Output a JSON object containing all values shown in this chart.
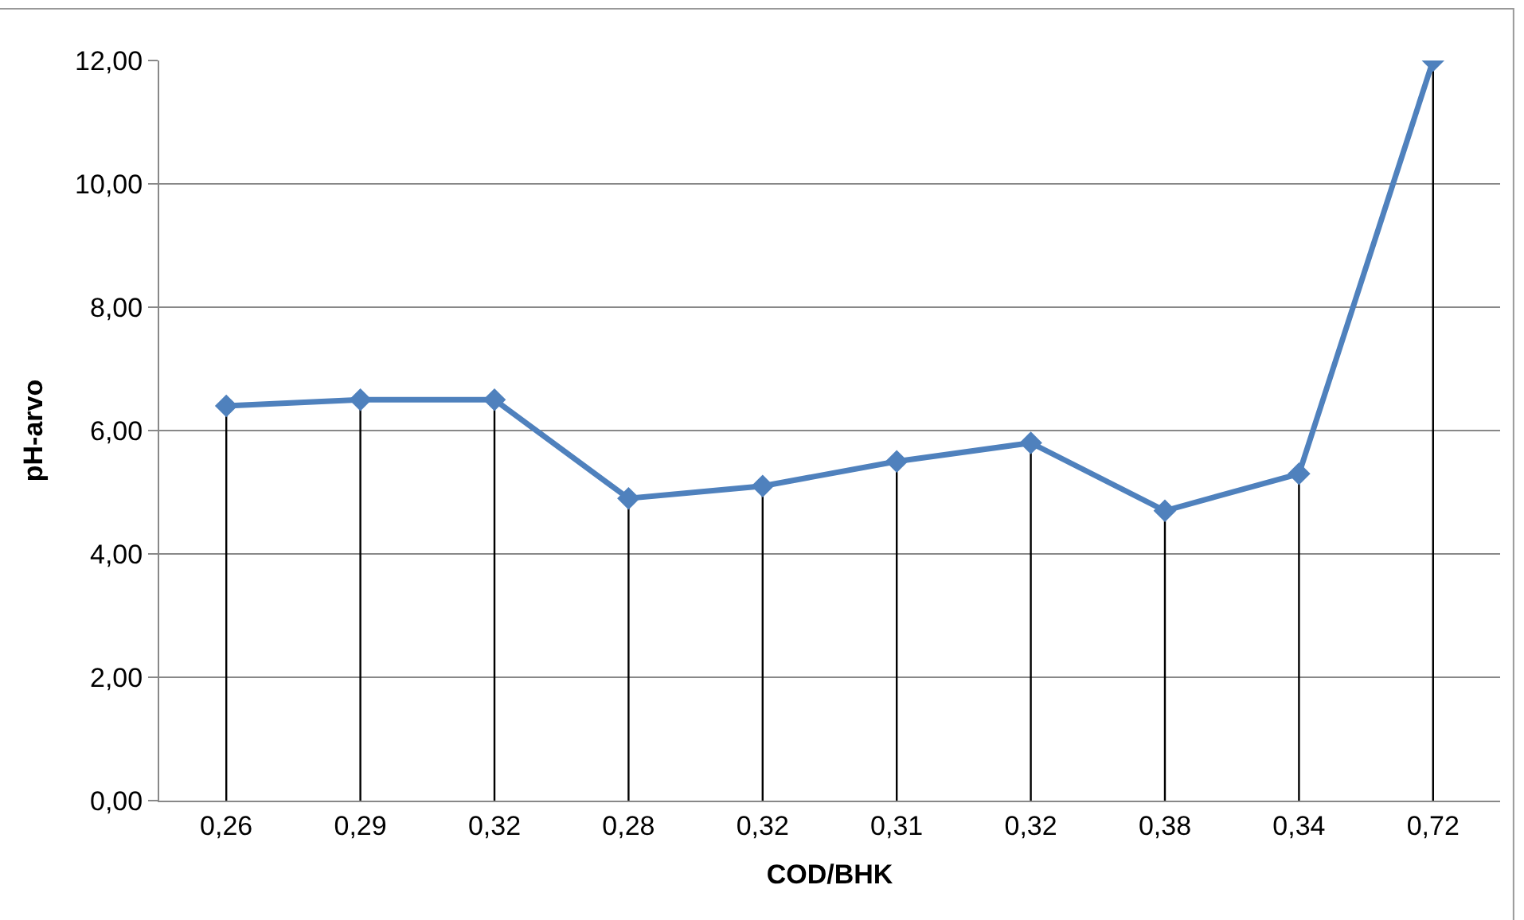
{
  "chart_data": {
    "type": "line",
    "xlabel": "COD/BHK",
    "ylabel": "pH-arvo",
    "categories": [
      "0,26",
      "0,29",
      "0,32",
      "0,28",
      "0,32",
      "0,31",
      "0,32",
      "0,38",
      "0,34",
      "0,72"
    ],
    "series": [
      {
        "color": "#4f81bd",
        "values": [
          6.4,
          6.5,
          6.5,
          4.9,
          5.1,
          5.5,
          5.8,
          4.7,
          5.3,
          12.0
        ],
        "errors": [
          [
            0,
            6.4
          ],
          [
            0,
            6.5
          ],
          [
            0,
            6.5
          ],
          [
            0,
            4.9
          ],
          [
            0,
            5.1
          ],
          [
            0,
            5.5
          ],
          [
            0,
            5.8
          ],
          [
            0,
            4.7
          ],
          [
            0,
            5.3
          ],
          [
            0,
            12.0
          ]
        ]
      }
    ],
    "ylim": [
      0,
      12
    ],
    "yticks": [
      {
        "value": 0,
        "label": "0,00"
      },
      {
        "value": 2,
        "label": "2,00"
      },
      {
        "value": 4,
        "label": "4,00"
      },
      {
        "value": 6,
        "label": "6,00"
      },
      {
        "value": 8,
        "label": "8,00"
      },
      {
        "value": 10,
        "label": "10,00"
      },
      {
        "value": 12,
        "label": "12,00"
      }
    ],
    "grid": "y",
    "marker": "diamond",
    "line_style": "solid"
  }
}
